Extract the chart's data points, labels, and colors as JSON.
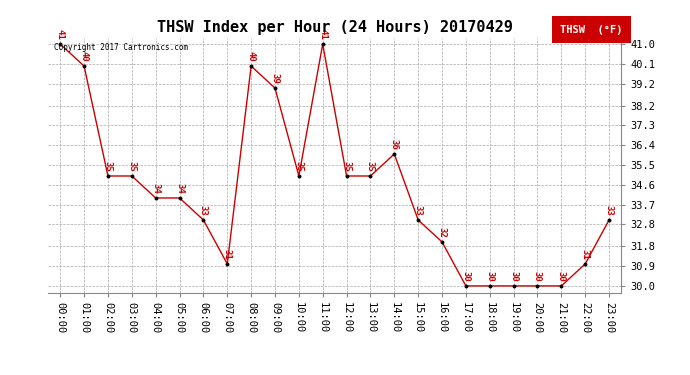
{
  "title": "THSW Index per Hour (24 Hours) 20170429",
  "copyright_text": "Copyright 2017 Cartronics.com",
  "legend_label": "THSW  (°F)",
  "x_labels": [
    "00:00",
    "01:00",
    "02:00",
    "03:00",
    "04:00",
    "05:00",
    "06:00",
    "07:00",
    "08:00",
    "09:00",
    "10:00",
    "11:00",
    "12:00",
    "13:00",
    "14:00",
    "15:00",
    "16:00",
    "17:00",
    "18:00",
    "19:00",
    "20:00",
    "21:00",
    "22:00",
    "23:00"
  ],
  "hours": [
    0,
    1,
    2,
    3,
    4,
    5,
    6,
    7,
    8,
    9,
    10,
    11,
    12,
    13,
    14,
    15,
    16,
    17,
    18,
    19,
    20,
    21,
    22,
    23
  ],
  "values": [
    41,
    40,
    35,
    35,
    34,
    34,
    33,
    31,
    40,
    39,
    35,
    41,
    35,
    35,
    36,
    33,
    32,
    30,
    30,
    30,
    30,
    30,
    31,
    33
  ],
  "line_color": "#cc0000",
  "marker_color": "#000000",
  "label_color": "#cc0000",
  "background_color": "#ffffff",
  "grid_color": "#aaaaaa",
  "ylim_min": 29.7,
  "ylim_max": 41.3,
  "y_ticks": [
    30.0,
    30.9,
    31.8,
    32.8,
    33.7,
    34.6,
    35.5,
    36.4,
    37.3,
    38.2,
    39.2,
    40.1,
    41.0
  ],
  "title_fontsize": 11,
  "label_fontsize": 6.5,
  "tick_fontsize": 7.5
}
